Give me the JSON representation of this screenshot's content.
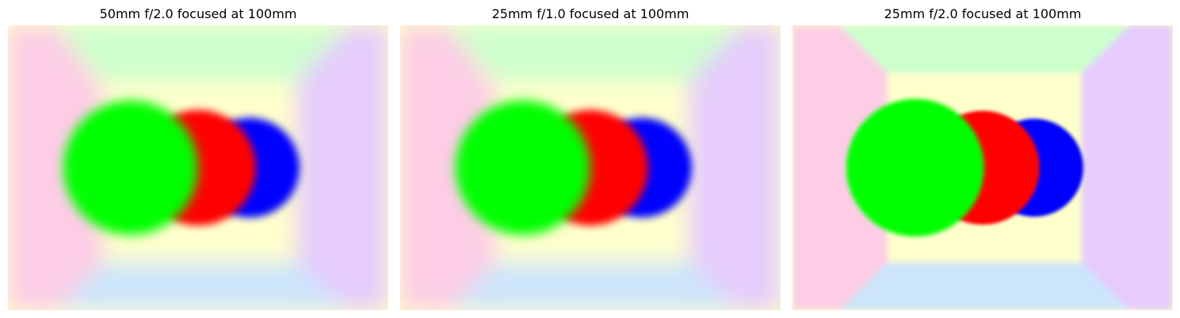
{
  "panels": [
    {
      "title": "50mm f/2.0 focused at 100mm",
      "blur": "strong"
    },
    {
      "title": "25mm f/1.0 focused at 100mm",
      "blur": "strong"
    },
    {
      "title": "25mm f/2.0 focused at 100mm",
      "blur": "light"
    }
  ],
  "colors": {
    "left_wall": "#fccde5",
    "top_wall": "#ccffcc",
    "bottom_wall": "#cce5fc",
    "right_wall": "#e5ccfc",
    "back_wall": "#ffffcc",
    "sphere_green": "#00ff00",
    "sphere_red": "#ff0000",
    "sphere_blue": "#0000ff"
  }
}
